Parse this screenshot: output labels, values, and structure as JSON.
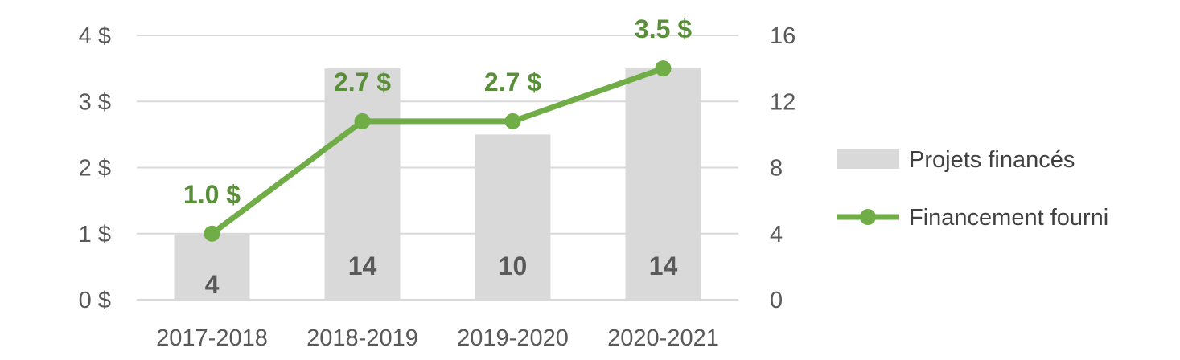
{
  "chart_data": {
    "type": "bar",
    "categories": [
      "2017-2018",
      "2018-2019",
      "2019-2020",
      "2020-2021"
    ],
    "series": [
      {
        "name": "Projets financés",
        "type": "bar",
        "axis": "right",
        "values": [
          4,
          14,
          10,
          14
        ],
        "labels": [
          "4",
          "14",
          "10",
          "14"
        ],
        "color": "#d9d9d9"
      },
      {
        "name": "Financement fourni",
        "type": "line",
        "axis": "left",
        "values": [
          1.0,
          2.7,
          2.7,
          3.5
        ],
        "labels": [
          "1.0 $",
          "2.7 $",
          "2.7 $",
          "3.5 $"
        ],
        "color": "#70ad47"
      }
    ],
    "y_left": {
      "min": 0,
      "max": 4,
      "ticks": [
        "0 $",
        "1 $",
        "2 $",
        "3 $",
        "4 $"
      ]
    },
    "y_right": {
      "min": 0,
      "max": 16,
      "ticks": [
        "0",
        "4",
        "8",
        "12",
        "16"
      ]
    },
    "grid": true,
    "legend_position": "right"
  }
}
